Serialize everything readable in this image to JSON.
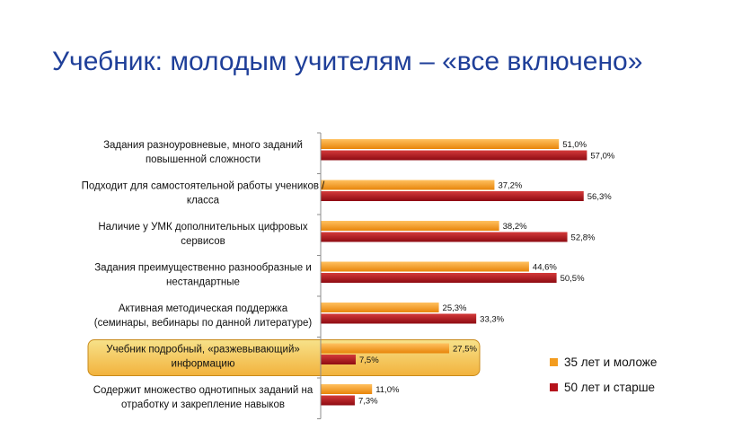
{
  "slide": {
    "title": "Учебник: молодым учителям – «все включено»"
  },
  "chart_data": {
    "type": "bar",
    "orientation": "horizontal",
    "categories": [
      [
        "Задания разноуровневые, много заданий",
        "повышенной сложности"
      ],
      [
        "Подходит для самостоятельной работы учеников /",
        "класса"
      ],
      [
        "Наличие у УМК дополнительных цифровых",
        "сервисов"
      ],
      [
        "Задания преимущественно разнообразные и",
        "нестандартные"
      ],
      [
        "Активная методическая поддержка",
        "(семинары, вебинары по данной литературе)"
      ],
      [
        "Учебник подробный, «разжевывающий»",
        "информацию"
      ],
      [
        "Содержит множество однотипных заданий на",
        "отработку и закрепление навыков"
      ]
    ],
    "series": [
      {
        "name": "35 лет и моложе",
        "color": "#f39c1f",
        "values": [
          51.0,
          37.2,
          38.2,
          44.6,
          25.3,
          27.5,
          11.0
        ],
        "labels": [
          "51,0%",
          "37,2%",
          "38,2%",
          "44,6%",
          "25,3%",
          "27,5%",
          "11,0%"
        ]
      },
      {
        "name": "50 лет и старше",
        "color": "#b5121b",
        "values": [
          57.0,
          56.3,
          52.8,
          50.5,
          33.3,
          7.5,
          7.3
        ],
        "labels": [
          "57,0%",
          "56,3%",
          "52,8%",
          "50,5%",
          "33,3%",
          "7,5%",
          "7,3%"
        ]
      }
    ],
    "xlim": [
      0,
      100
    ],
    "highlighted_category_index": 5,
    "legend_position": "right",
    "grid": false
  }
}
